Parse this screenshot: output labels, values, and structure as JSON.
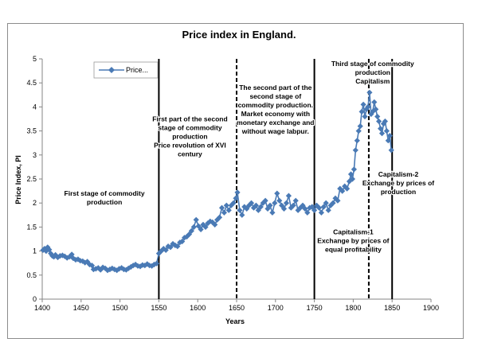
{
  "chart_data": {
    "type": "line",
    "title": "Price index in England.",
    "xlabel": "Years",
    "ylabel": "Price Index, PI",
    "xlim": [
      1400,
      1900
    ],
    "ylim": [
      0,
      5
    ],
    "x_ticks": [
      "1400",
      "1450",
      "1500",
      "1550",
      "1600",
      "1650",
      "1700",
      "1750",
      "1800",
      "1850",
      "1900"
    ],
    "y_ticks": [
      "0",
      "0.5",
      "1",
      "1.5",
      "2",
      "2.5",
      "3",
      "3.5",
      "4",
      "4.5",
      "5"
    ],
    "grid": false,
    "legend": {
      "label": "Price...",
      "placement": "top-left"
    },
    "colors": {
      "series": "#4a7ab5",
      "marker": "#4a7ab5",
      "divider": "#000000"
    },
    "series": [
      {
        "name": "Price...",
        "x": [
          1401,
          1403,
          1405,
          1407,
          1409,
          1411,
          1413,
          1415,
          1417,
          1420,
          1423,
          1426,
          1429,
          1432,
          1435,
          1438,
          1440,
          1443,
          1446,
          1449,
          1452,
          1455,
          1458,
          1461,
          1464,
          1466,
          1469,
          1472,
          1475,
          1478,
          1481,
          1484,
          1487,
          1490,
          1493,
          1496,
          1499,
          1502,
          1505,
          1508,
          1511,
          1514,
          1517,
          1520,
          1523,
          1526,
          1529,
          1532,
          1535,
          1538,
          1541,
          1544,
          1547,
          1550,
          1553,
          1556,
          1559,
          1562,
          1565,
          1568,
          1571,
          1574,
          1577,
          1580,
          1583,
          1586,
          1589,
          1592,
          1595,
          1598,
          1601,
          1604,
          1607,
          1610,
          1613,
          1616,
          1619,
          1622,
          1625,
          1628,
          1631,
          1634,
          1637,
          1640,
          1643,
          1646,
          1649,
          1651,
          1654,
          1657,
          1660,
          1663,
          1666,
          1669,
          1672,
          1675,
          1678,
          1681,
          1684,
          1687,
          1690,
          1693,
          1696,
          1699,
          1702,
          1705,
          1708,
          1711,
          1714,
          1717,
          1720,
          1723,
          1726,
          1729,
          1732,
          1735,
          1738,
          1741,
          1744,
          1747,
          1750,
          1753,
          1756,
          1759,
          1762,
          1765,
          1768,
          1771,
          1774,
          1777,
          1780,
          1783,
          1786,
          1789,
          1792,
          1795,
          1797,
          1799,
          1801,
          1803,
          1805,
          1807,
          1809,
          1811,
          1813,
          1815,
          1817,
          1819,
          1821,
          1823,
          1825,
          1827,
          1829,
          1831,
          1833,
          1835,
          1837,
          1839,
          1841,
          1843,
          1845,
          1847,
          1849
        ],
        "values": [
          1.02,
          1.05,
          1.0,
          1.08,
          1.03,
          0.95,
          0.9,
          0.88,
          0.92,
          0.87,
          0.9,
          0.91,
          0.89,
          0.86,
          0.88,
          0.93,
          0.85,
          0.82,
          0.83,
          0.8,
          0.79,
          0.76,
          0.78,
          0.72,
          0.7,
          0.62,
          0.63,
          0.65,
          0.61,
          0.66,
          0.64,
          0.6,
          0.62,
          0.64,
          0.62,
          0.6,
          0.63,
          0.65,
          0.62,
          0.61,
          0.64,
          0.67,
          0.7,
          0.72,
          0.69,
          0.68,
          0.71,
          0.7,
          0.73,
          0.7,
          0.69,
          0.72,
          0.74,
          0.95,
          1.0,
          1.05,
          1.02,
          1.1,
          1.08,
          1.15,
          1.12,
          1.1,
          1.18,
          1.2,
          1.28,
          1.3,
          1.35,
          1.42,
          1.5,
          1.65,
          1.52,
          1.45,
          1.55,
          1.5,
          1.58,
          1.62,
          1.6,
          1.55,
          1.65,
          1.7,
          1.9,
          1.8,
          1.95,
          1.85,
          1.95,
          2.0,
          2.1,
          2.22,
          1.85,
          1.75,
          1.92,
          1.88,
          1.95,
          2.0,
          1.9,
          1.95,
          1.85,
          1.92,
          2.0,
          2.05,
          1.88,
          1.95,
          1.8,
          2.0,
          2.2,
          2.05,
          1.95,
          1.88,
          2.0,
          2.15,
          1.9,
          1.95,
          2.05,
          1.85,
          1.9,
          1.95,
          1.88,
          1.8,
          1.9,
          1.92,
          1.85,
          1.95,
          1.9,
          1.8,
          1.92,
          2.0,
          1.85,
          1.95,
          2.0,
          2.1,
          2.05,
          2.3,
          2.25,
          2.35,
          2.3,
          2.45,
          2.6,
          2.5,
          2.7,
          3.1,
          3.3,
          3.5,
          3.6,
          3.9,
          4.05,
          3.8,
          3.95,
          4.0,
          4.3,
          3.85,
          3.9,
          4.1,
          3.95,
          3.8,
          3.7,
          3.55,
          3.45,
          3.65,
          3.7,
          3.5,
          3.3,
          3.4,
          3.1
        ]
      }
    ],
    "dividers": [
      {
        "year": 1550,
        "style": "solid"
      },
      {
        "year": 1650,
        "style": "dashed"
      },
      {
        "year": 1750,
        "style": "solid"
      },
      {
        "year": 1820,
        "style": "dashed"
      },
      {
        "year": 1850,
        "style": "solid"
      }
    ],
    "annotations": [
      {
        "id": "stage1",
        "lines": [
          "First stage of commodity",
          "production"
        ],
        "x": 1480,
        "y": 2.3
      },
      {
        "id": "stage2-first",
        "lines": [
          "First part of the second",
          "stage of commodity",
          "production",
          "Price revolution of XVI",
          "century"
        ],
        "x": 1590,
        "y": 3.85
      },
      {
        "id": "stage2-second",
        "lines": [
          "The second part of the",
          "second stage of",
          "commodity production.",
          "Market economy with",
          "monetary exchange and",
          "without wage labpur."
        ],
        "x": 1700,
        "y": 4.5
      },
      {
        "id": "stage3",
        "lines": [
          "Third stage of commodity",
          "production",
          "Capitalism"
        ],
        "x": 1825,
        "y": 5.0
      },
      {
        "id": "capitalism1",
        "lines": [
          "Capitalism-1",
          "Exchange by prices of",
          "equal profitability"
        ],
        "x": 1800,
        "y": 1.5
      },
      {
        "id": "capitalism2",
        "lines": [
          "Capitalism-2",
          "Exchange by prices of",
          "production"
        ],
        "x": 1858,
        "y": 2.7
      }
    ]
  }
}
